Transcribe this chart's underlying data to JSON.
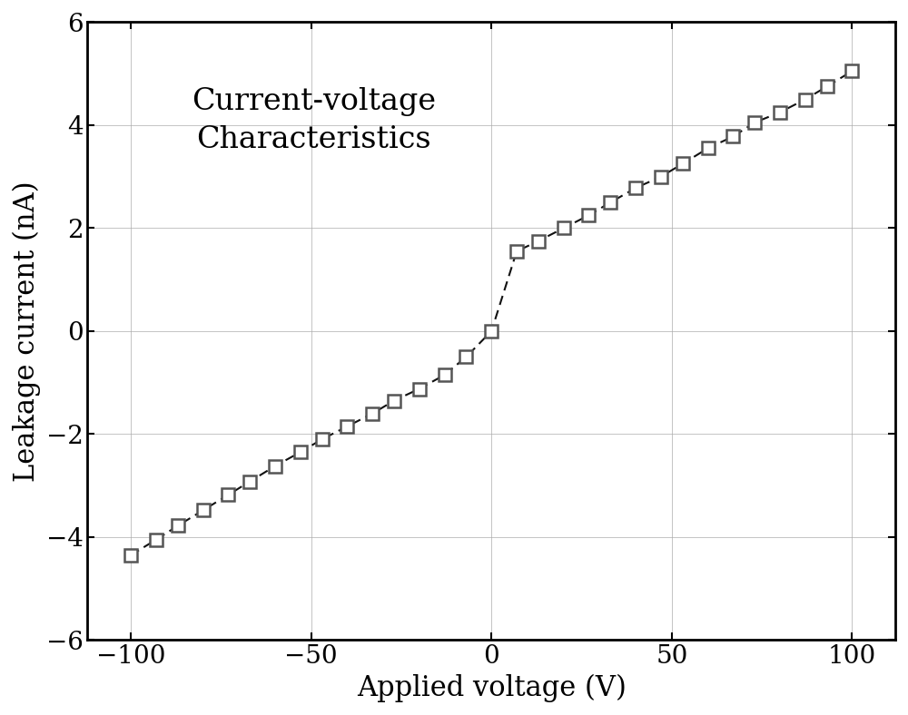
{
  "title_line1": "Current-voltage",
  "title_line2": "Characteristics",
  "xlabel": "Applied voltage (V)",
  "ylabel": "Leakage current (nA)",
  "xlim": [
    -112,
    112
  ],
  "ylim": [
    -6,
    6
  ],
  "xticks": [
    -100,
    -50,
    0,
    50,
    100
  ],
  "yticks": [
    -6,
    -4,
    -2,
    0,
    2,
    4,
    6
  ],
  "x_data": [
    -100,
    -93,
    -87,
    -80,
    -73,
    -67,
    -60,
    -53,
    -47,
    -40,
    -33,
    -27,
    -20,
    -13,
    -7,
    0,
    7,
    13,
    20,
    27,
    33,
    40,
    47,
    53,
    60,
    67,
    73,
    80,
    87,
    93,
    100
  ],
  "y_data": [
    -4.35,
    -4.05,
    -3.78,
    -3.48,
    -3.18,
    -2.92,
    -2.62,
    -2.35,
    -2.1,
    -1.85,
    -1.6,
    -1.35,
    -1.12,
    -0.85,
    -0.5,
    0.0,
    1.55,
    1.75,
    2.0,
    2.25,
    2.5,
    2.78,
    3.0,
    3.25,
    3.55,
    3.78,
    4.05,
    4.25,
    4.5,
    4.75,
    5.05
  ],
  "line_color": "#111111",
  "marker_facecolor": "#ffffff",
  "marker_edgecolor": "#555555",
  "grid_color": "#aaaaaa",
  "background_color": "#ffffff",
  "title_fontsize": 24,
  "label_fontsize": 22,
  "tick_fontsize": 20,
  "marker_size": 10,
  "linewidth": 1.5,
  "marker_edgewidth": 1.8
}
